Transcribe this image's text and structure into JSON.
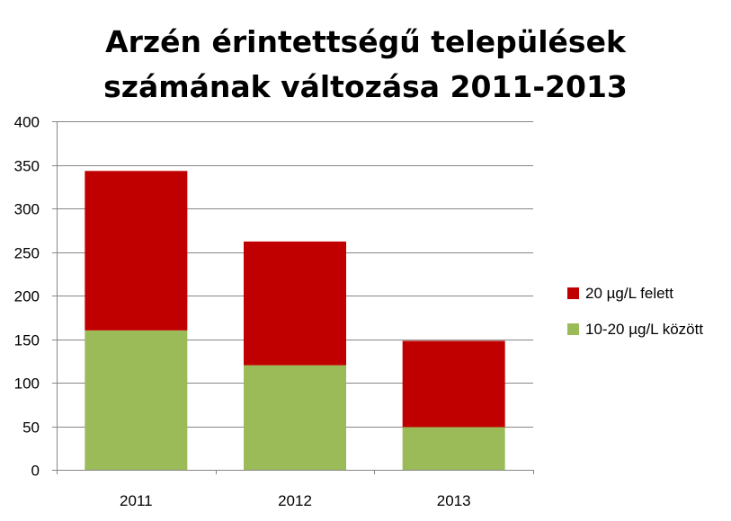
{
  "chart_data": {
    "type": "bar",
    "stacked": true,
    "title_lines": [
      "Arzén érintettségű települések",
      "számának változása 2011-2013"
    ],
    "categories": [
      "2011",
      "2012",
      "2013"
    ],
    "series": [
      {
        "name": "10-20 µg/L között",
        "color": "#9BBB59",
        "values": [
          160,
          120,
          49
        ]
      },
      {
        "name": "20 µg/L felett",
        "color": "#C00000",
        "values": [
          183,
          142,
          99
        ]
      }
    ],
    "ylim": [
      0,
      400
    ],
    "yticks": [
      0,
      50,
      100,
      150,
      200,
      250,
      300,
      350,
      400
    ],
    "grid": true,
    "legend_position": "right"
  }
}
